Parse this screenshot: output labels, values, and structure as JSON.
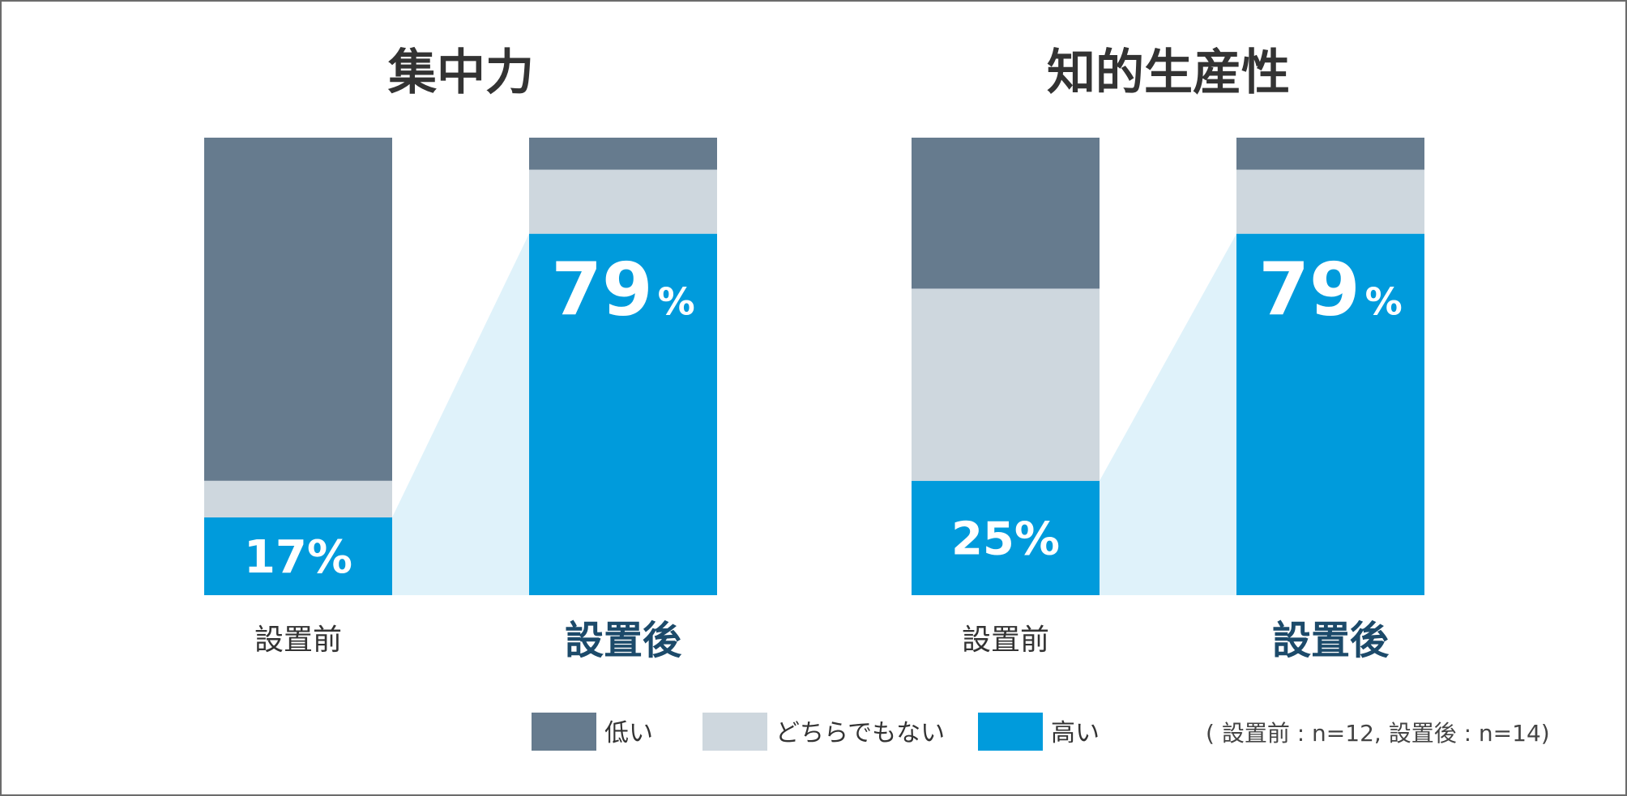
{
  "chart_data": [
    {
      "type": "stacked-bar",
      "title": "集中力",
      "categories": [
        "設置前",
        "設置後"
      ],
      "series": [
        {
          "name": "高い",
          "values": [
            17,
            79
          ]
        },
        {
          "name": "どちらでもない",
          "values": [
            8,
            14
          ]
        },
        {
          "name": "低い",
          "values": [
            75,
            7
          ]
        }
      ],
      "labels": {
        "before": "17%",
        "after_number": "79",
        "after_unit": "%"
      },
      "ylim": [
        0,
        100
      ]
    },
    {
      "type": "stacked-bar",
      "title": "知的生産性",
      "categories": [
        "設置前",
        "設置後"
      ],
      "series": [
        {
          "name": "高い",
          "values": [
            25,
            79
          ]
        },
        {
          "name": "どちらでもない",
          "values": [
            42,
            14
          ]
        },
        {
          "name": "低い",
          "values": [
            33,
            7
          ]
        }
      ],
      "labels": {
        "before": "25%",
        "after_number": "79",
        "after_unit": "%"
      },
      "ylim": [
        0,
        100
      ]
    }
  ],
  "colors": {
    "low": "#667b8e",
    "neutral": "#ced7de",
    "high": "#009bdc",
    "connector": "#dff2fa"
  },
  "legend": [
    {
      "key": "low",
      "label": "低い"
    },
    {
      "key": "neutral",
      "label": "どちらでもない"
    },
    {
      "key": "high",
      "label": "高い"
    }
  ],
  "note": "( 設置前 : n=12, 設置後 : n=14)"
}
